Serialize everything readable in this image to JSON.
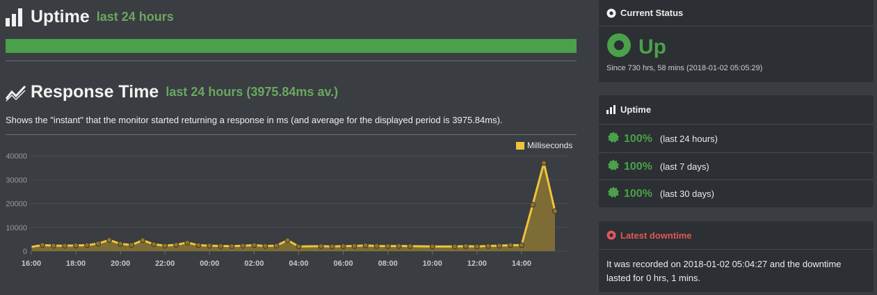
{
  "uptime_section": {
    "title": "Uptime",
    "subtitle": "last 24 hours",
    "bar_fraction": 1.0
  },
  "response_section": {
    "title": "Response Time",
    "subtitle": "last 24 hours (3975.84ms av.)",
    "description": "Shows the \"instant\" that the monitor started returning a response in ms (and average for the displayed period is 3975.84ms)."
  },
  "colors": {
    "accent_green": "#4aa14a",
    "series_yellow": "#f0c43a",
    "down_red": "#e0585a"
  },
  "chart_data": {
    "type": "area",
    "series": [
      {
        "name": "Milliseconds",
        "color": "#f0c43a",
        "points": [
          {
            "t": "16:00",
            "v": 1800
          },
          {
            "t": "16:30",
            "v": 2600
          },
          {
            "t": "17:00",
            "v": 2300
          },
          {
            "t": "17:30",
            "v": 2300
          },
          {
            "t": "18:00",
            "v": 2400
          },
          {
            "t": "18:30",
            "v": 2500
          },
          {
            "t": "19:00",
            "v": 3200
          },
          {
            "t": "19:30",
            "v": 4700
          },
          {
            "t": "20:00",
            "v": 3100
          },
          {
            "t": "20:30",
            "v": 2600
          },
          {
            "t": "21:00",
            "v": 4600
          },
          {
            "t": "21:30",
            "v": 2900
          },
          {
            "t": "22:00",
            "v": 2300
          },
          {
            "t": "22:30",
            "v": 2700
          },
          {
            "t": "23:00",
            "v": 3600
          },
          {
            "t": "23:30",
            "v": 2500
          },
          {
            "t": "00:00",
            "v": 2300
          },
          {
            "t": "00:30",
            "v": 2200
          },
          {
            "t": "01:00",
            "v": 2100
          },
          {
            "t": "01:30",
            "v": 2300
          },
          {
            "t": "02:00",
            "v": 2500
          },
          {
            "t": "02:30",
            "v": 2200
          },
          {
            "t": "03:00",
            "v": 2300
          },
          {
            "t": "03:30",
            "v": 4600
          },
          {
            "t": "04:00",
            "v": 2000
          },
          {
            "t": "05:00",
            "v": 2100
          },
          {
            "t": "05:30",
            "v": 2000
          },
          {
            "t": "06:00",
            "v": 2100
          },
          {
            "t": "06:30",
            "v": 2200
          },
          {
            "t": "07:00",
            "v": 2400
          },
          {
            "t": "07:30",
            "v": 2200
          },
          {
            "t": "08:00",
            "v": 2100
          },
          {
            "t": "08:30",
            "v": 2200
          },
          {
            "t": "09:00",
            "v": 2100
          },
          {
            "t": "10:00",
            "v": 2000
          },
          {
            "t": "11:00",
            "v": 2000
          },
          {
            "t": "11:30",
            "v": 2100
          },
          {
            "t": "12:00",
            "v": 2000
          },
          {
            "t": "12:30",
            "v": 2200
          },
          {
            "t": "13:00",
            "v": 2300
          },
          {
            "t": "13:30",
            "v": 2500
          },
          {
            "t": "14:00",
            "v": 2500
          },
          {
            "t": "14:30",
            "v": 19500
          },
          {
            "t": "15:00",
            "v": 37000
          },
          {
            "t": "15:30",
            "v": 16800
          }
        ]
      }
    ],
    "x_ticks": [
      "18:00",
      "20:00",
      "22:00",
      "00:00",
      "02:00",
      "04:00",
      "06:00",
      "08:00",
      "10:00",
      "12:00",
      "14:00",
      "16:00"
    ],
    "y_ticks": [
      "0",
      "10000",
      "20000",
      "30000",
      "40000"
    ],
    "ylim": [
      0,
      40000
    ],
    "grid": true,
    "legend": "top-right"
  },
  "current_status": {
    "header": "Current Status",
    "status": "Up",
    "since": "Since 730 hrs, 58 mins (2018-01-02 05:05:29)"
  },
  "uptime_panel": {
    "header": "Uptime",
    "rows": [
      {
        "value": "100%",
        "label": "(last 24 hours)"
      },
      {
        "value": "100%",
        "label": "(last 7 days)"
      },
      {
        "value": "100%",
        "label": "(last 30 days)"
      }
    ]
  },
  "latest_downtime": {
    "header": "Latest downtime",
    "text": "It was recorded on 2018-01-02 05:04:27 and the downtime lasted for 0 hrs, 1 mins."
  }
}
